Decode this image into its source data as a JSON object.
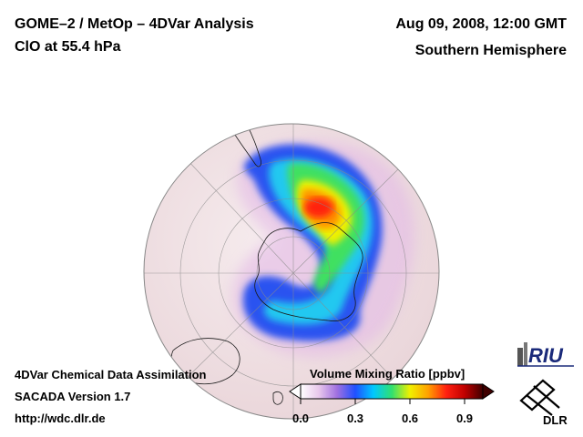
{
  "header": {
    "title_line1": "GOME–2 / MetOp – 4DVar Analysis",
    "title_line2": "ClO at 55.4 hPa",
    "datetime": "Aug 09, 2008, 12:00 GMT",
    "region": "Southern Hemisphere"
  },
  "footer": {
    "line1": "4DVar Chemical Data Assimilation",
    "line2": "SACADA Version 1.7",
    "line3": "http://wdc.dlr.de"
  },
  "colorbar": {
    "title": "Volume Mixing Ratio [ppbv]",
    "ticks": [
      "0.0",
      "0.3",
      "0.6",
      "0.9"
    ],
    "tick_values": [
      0.0,
      0.3,
      0.6,
      0.9
    ],
    "range": [
      0.0,
      1.0
    ],
    "colors": [
      "#ffffff",
      "#e8c8ec",
      "#a070e0",
      "#2050ff",
      "#00c8ff",
      "#30e070",
      "#f0f000",
      "#ffa000",
      "#ff2010",
      "#c00000",
      "#400000"
    ]
  },
  "logos": {
    "riu": "RIU",
    "dlr": "DLR"
  },
  "map": {
    "projection": "orthographic",
    "view": "Southern Hemisphere",
    "background_color": "#f2e6e8"
  }
}
